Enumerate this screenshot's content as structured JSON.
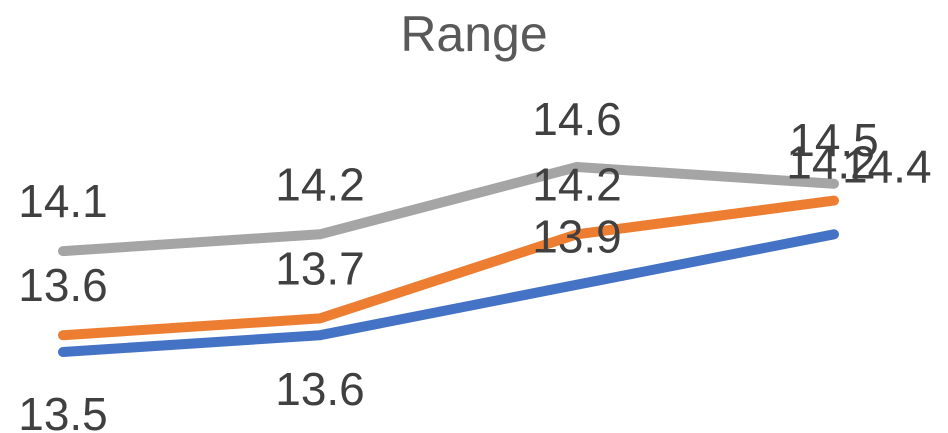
{
  "chart_data": {
    "type": "line",
    "title": "Range",
    "categories": [
      "",
      "",
      "",
      ""
    ],
    "series": [
      {
        "values": [
          13.5,
          13.6,
          13.9,
          14.2
        ],
        "color": "#4472C4",
        "label_position": "mixed"
      },
      {
        "values": [
          13.6,
          13.7,
          14.2,
          14.4
        ],
        "color": "#ED7D31",
        "label_position": "above"
      },
      {
        "values": [
          14.1,
          14.2,
          14.6,
          14.5
        ],
        "color": "#A5A5A5",
        "label_position": "above"
      }
    ],
    "grid": false,
    "legend": "none"
  }
}
